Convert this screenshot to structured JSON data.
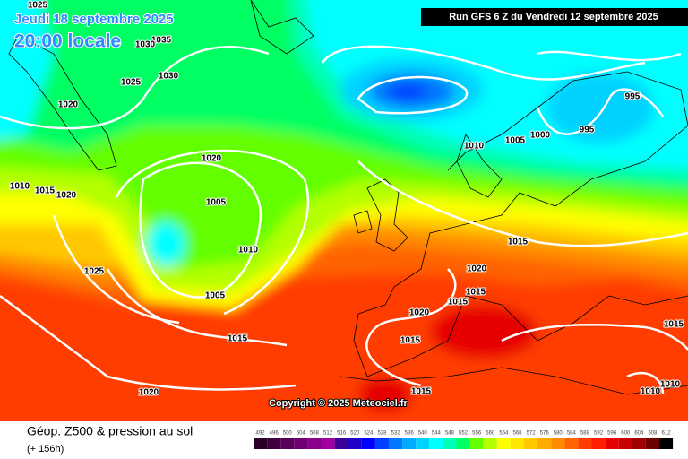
{
  "header": {
    "date": "Jeudi 18 septembre 2025",
    "time": "20:00 locale",
    "run": "Run GFS 6 Z du Vendredi 12 septembre 2025"
  },
  "isobars": [
    1025,
    1035,
    1030,
    1025,
    1030,
    1020,
    1020,
    1010,
    1005,
    1000,
    995,
    995,
    1005,
    1010,
    1005,
    1015,
    1010,
    1015,
    1020,
    1025,
    1015,
    1020,
    1015,
    1015,
    1020,
    1015,
    1015,
    1020,
    1015,
    1010,
    1010
  ],
  "copyright": "Copyright © 2025 Meteociel.fr",
  "footer": {
    "title": "Géop. Z500 & pression au sol",
    "lead": "(+ 156h)"
  },
  "scale": {
    "values": [
      492,
      496,
      500,
      504,
      508,
      512,
      516,
      520,
      524,
      528,
      532,
      536,
      540,
      544,
      548,
      552,
      556,
      560,
      564,
      568,
      572,
      576,
      580,
      584,
      588,
      592,
      596,
      600,
      604,
      608,
      612
    ],
    "colors": [
      "#2a002a",
      "#400040",
      "#580058",
      "#700070",
      "#8a008a",
      "#a000a0",
      "#3c0096",
      "#1e00c8",
      "#0000ff",
      "#0040ff",
      "#0078ff",
      "#00aaff",
      "#00d2ff",
      "#00ffff",
      "#00ffb4",
      "#00ff64",
      "#64ff00",
      "#b4ff00",
      "#ffff00",
      "#ffe600",
      "#ffc800",
      "#ffaa00",
      "#ff8c00",
      "#ff6400",
      "#ff3c00",
      "#ff1e00",
      "#e60000",
      "#c80000",
      "#a00000",
      "#6e0000",
      "#000000"
    ]
  }
}
